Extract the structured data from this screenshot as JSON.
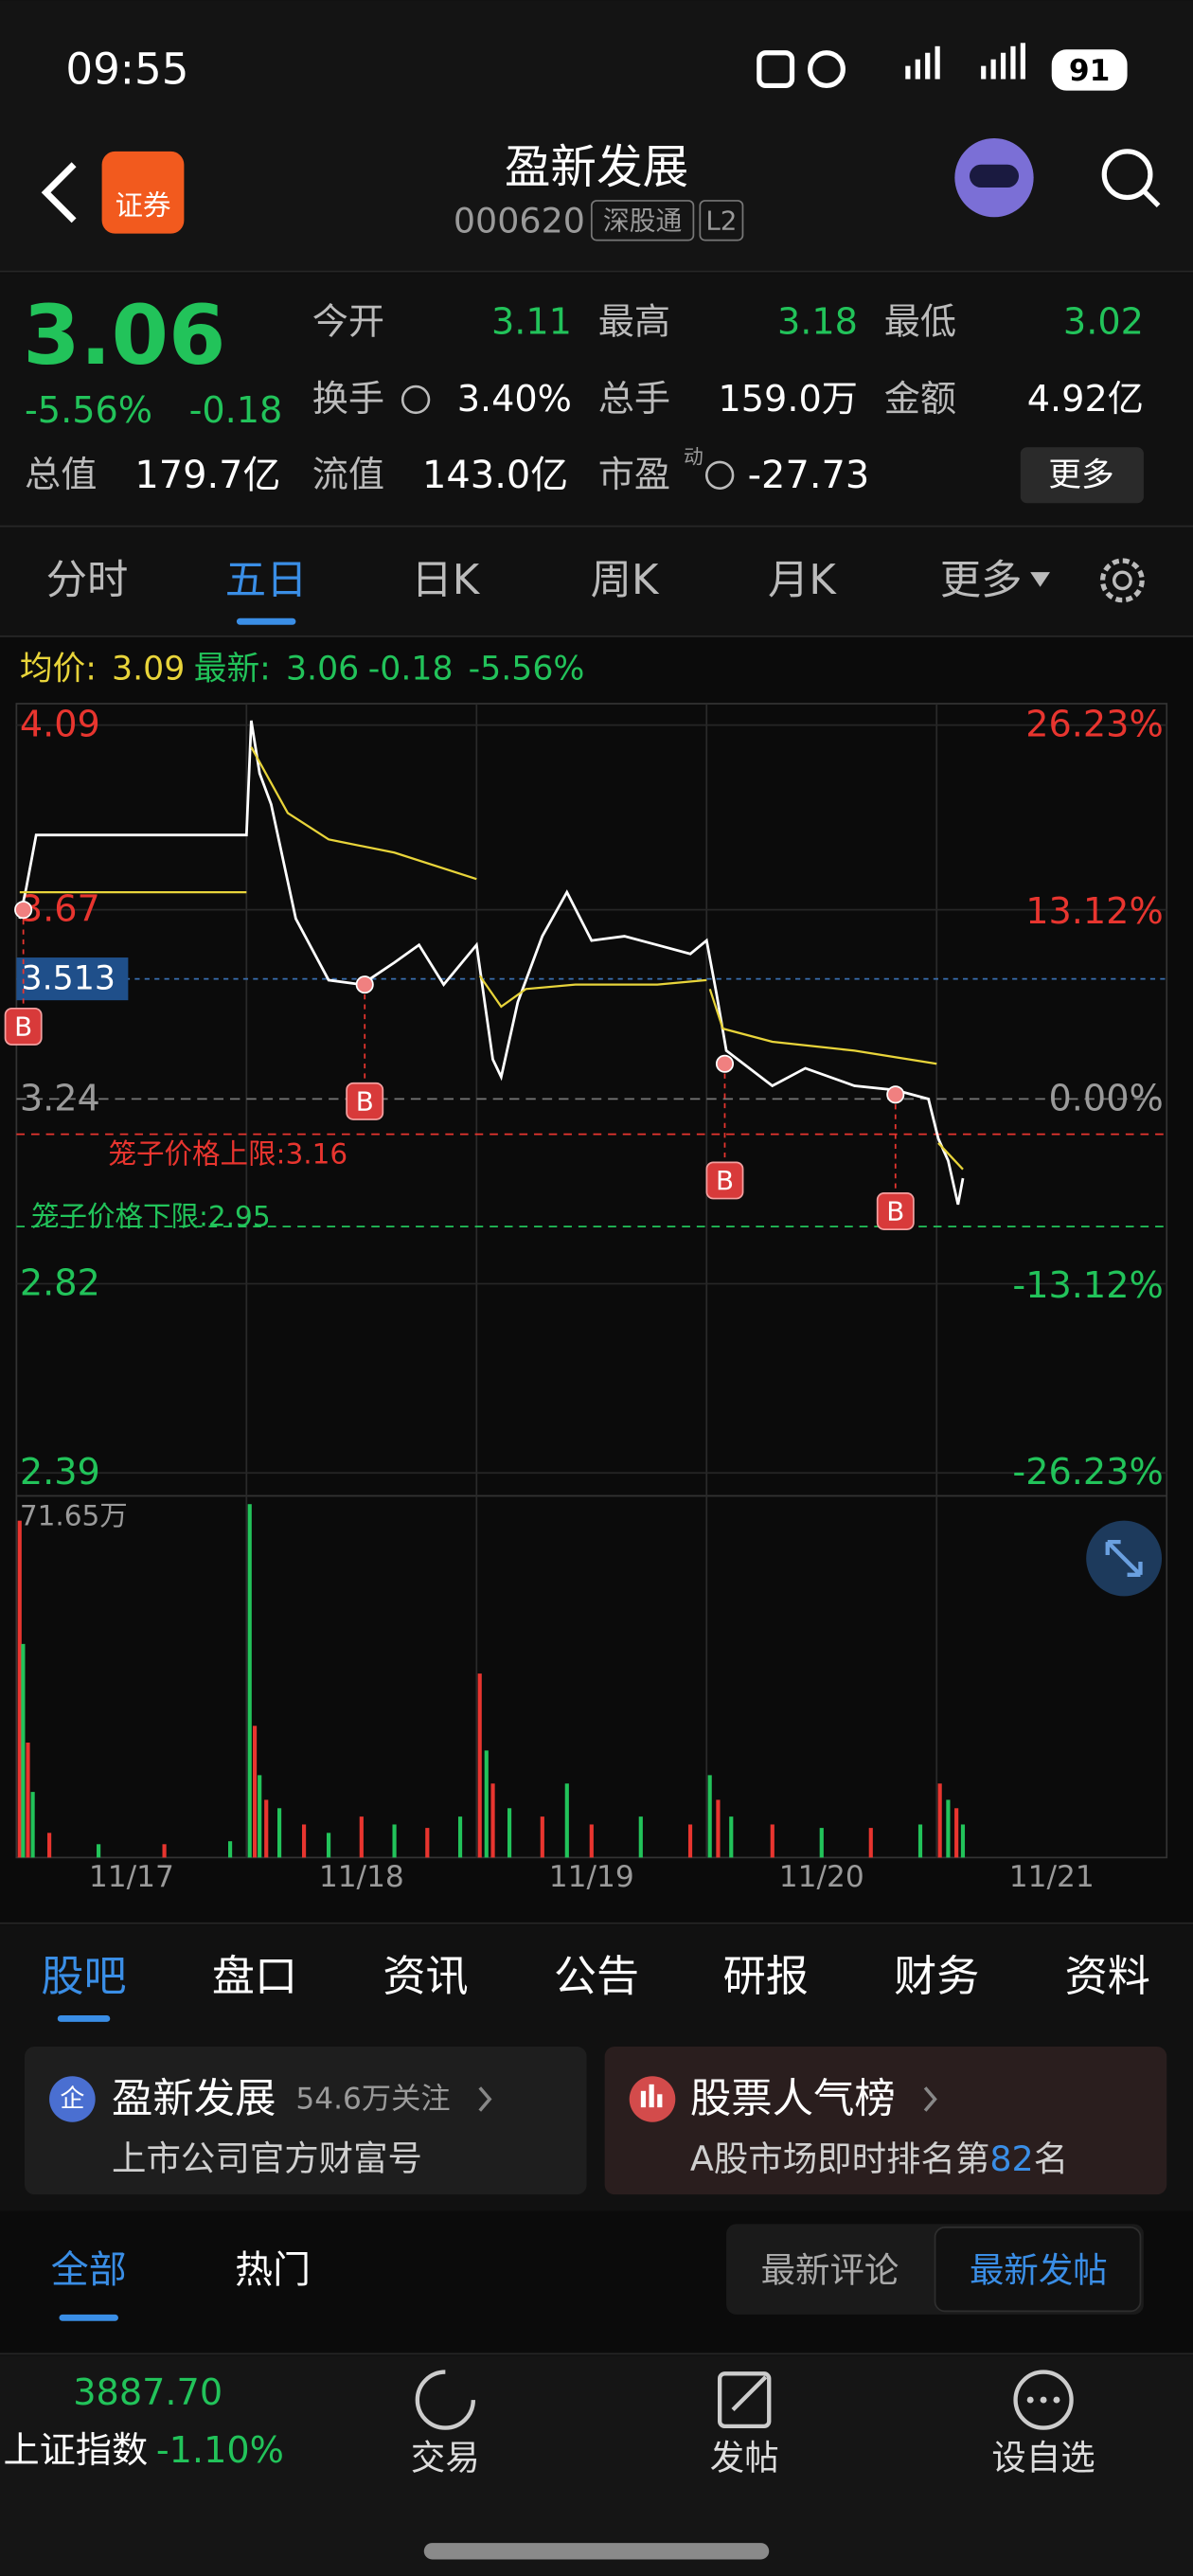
{
  "status": {
    "time": "09:55",
    "battery": "91"
  },
  "header": {
    "logo": "证券",
    "title": "盈新发展",
    "code": "000620",
    "tags": [
      "深股通",
      "L2"
    ]
  },
  "quote": {
    "price": "3.06",
    "change_pct": "-5.56%",
    "change": "-0.18",
    "stats": [
      {
        "label": "今开",
        "value": "3.11"
      },
      {
        "label": "最高",
        "value": "3.18"
      },
      {
        "label": "最低",
        "value": "3.02"
      },
      {
        "label": "换手",
        "value": "3.40%"
      },
      {
        "label": "总手",
        "value": "159.0万"
      },
      {
        "label": "金额",
        "value": "4.92亿"
      },
      {
        "label": "总值",
        "value": "179.7亿"
      },
      {
        "label": "流值",
        "value": "143.0亿"
      },
      {
        "label": "市盈",
        "value": "-27.73"
      }
    ],
    "pe_note": "动",
    "more": "更多"
  },
  "chart_tabs": {
    "items": [
      "分时",
      "五日",
      "日K",
      "周K",
      "月K",
      "更多"
    ],
    "active": 1
  },
  "legend": {
    "avg_label": "均价:",
    "avg": "3.09",
    "last_label": "最新:",
    "last": "3.06",
    "change": "-0.18",
    "change_pct": "-5.56%"
  },
  "chart": {
    "type": "line",
    "xlim": [
      0,
      5
    ],
    "categories": [
      "11/17",
      "11/18",
      "11/19",
      "11/20",
      "11/21"
    ],
    "ylim": [
      2.39,
      4.09
    ],
    "yticks": [
      4.09,
      3.67,
      3.24,
      2.82,
      2.39
    ],
    "y2lim": [
      -26.23,
      26.23
    ],
    "y2ticks": [
      {
        "value": 26.23,
        "label": "26.23%"
      },
      {
        "value": 13.12,
        "label": "13.12%"
      },
      {
        "value": 0,
        "label": "0.00%"
      },
      {
        "value": -13.12,
        "label": "-13.12%"
      },
      {
        "value": -26.23,
        "label": "-26.23%"
      }
    ],
    "series": [
      {
        "name": "最新",
        "color": "#ffffff",
        "x": [
          0.014,
          0.043,
          0.086,
          1.0,
          1.021,
          1.057,
          1.107,
          1.214,
          1.357,
          1.5,
          1.643,
          1.75,
          1.857,
          2.0,
          2.071,
          2.107,
          2.179,
          2.286,
          2.393,
          2.5,
          2.643,
          2.786,
          2.929,
          3.0,
          3.043,
          3.086,
          3.286,
          3.429,
          3.643,
          3.821,
          3.964,
          4.007,
          4.05,
          4.093,
          4.114
        ],
        "values": [
          3.65,
          3.72,
          3.84,
          3.84,
          4.1,
          3.98,
          3.91,
          3.65,
          3.51,
          3.5,
          3.55,
          3.59,
          3.5,
          3.59,
          3.33,
          3.29,
          3.46,
          3.61,
          3.71,
          3.6,
          3.61,
          3.59,
          3.57,
          3.6,
          3.48,
          3.35,
          3.27,
          3.31,
          3.27,
          3.26,
          3.24,
          3.15,
          3.1,
          3.0,
          3.06
        ]
      },
      {
        "name": "均价",
        "color": "#e8d43a",
        "x": [
          0.014,
          1.0,
          1.01,
          1.021,
          1.179,
          1.357,
          1.643,
          2.0,
          2.01,
          2.014,
          2.107,
          2.214,
          2.429,
          2.786,
          3.0,
          3.01,
          3.014,
          3.071,
          3.286,
          3.643,
          4.0,
          4.004,
          4.007,
          4.114
        ],
        "values": [
          3.71,
          3.71,
          null,
          4.04,
          3.89,
          3.83,
          3.8,
          3.74,
          null,
          3.52,
          3.45,
          3.49,
          3.5,
          3.5,
          3.51,
          null,
          3.49,
          3.4,
          3.37,
          3.35,
          3.32,
          null,
          3.14,
          3.08
        ]
      }
    ],
    "ref_line": {
      "value": 3.513,
      "label": "3.513"
    },
    "cage": [
      {
        "label": "笼子价格上限:3.16",
        "value": 3.16,
        "color": "#e8352f"
      },
      {
        "label": "笼子价格下限:2.95",
        "value": 2.95,
        "color": "#22c35a"
      }
    ],
    "trade_marks": [
      {
        "x": 0.03,
        "price": 3.67,
        "label": "B"
      },
      {
        "x": 1.514,
        "price": 3.5,
        "label": "B"
      },
      {
        "x": 3.079,
        "price": 3.32,
        "label": "B"
      },
      {
        "x": 3.821,
        "price": 3.25,
        "label": "B"
      }
    ],
    "volume": {
      "ylim": [
        0,
        71.65
      ],
      "ytick": {
        "value": 71.65,
        "label": "71.65万"
      },
      "x": [
        0.014,
        0.029,
        0.05,
        0.071,
        0.143,
        0.357,
        0.643,
        0.929,
        1.014,
        1.036,
        1.057,
        1.086,
        1.143,
        1.25,
        1.357,
        1.5,
        1.643,
        1.786,
        1.929,
        2.014,
        2.043,
        2.071,
        2.143,
        2.286,
        2.393,
        2.5,
        2.714,
        2.929,
        3.014,
        3.05,
        3.107,
        3.286,
        3.5,
        3.714,
        3.929,
        4.014,
        4.05,
        4.086,
        4.114
      ],
      "values": [
        68.3,
        43.3,
        23.3,
        13.3,
        5.0,
        2.7,
        2.7,
        3.3,
        71.65,
        26.7,
        16.7,
        11.7,
        10.0,
        6.7,
        5.0,
        8.3,
        6.7,
        6.0,
        8.3,
        37.3,
        21.7,
        15.0,
        10.0,
        8.3,
        15.0,
        6.7,
        8.3,
        6.7,
        16.7,
        11.7,
        8.3,
        6.7,
        6.0,
        6.0,
        6.7,
        15.0,
        11.7,
        10.0,
        6.7
      ],
      "colors": [
        "#e8352f",
        "#22c35a",
        "#e8352f",
        "#22c35a",
        "#e8352f",
        "#22c35a",
        "#e8352f",
        "#22c35a",
        "#22c35a",
        "#e8352f",
        "#22c35a",
        "#e8352f",
        "#22c35a",
        "#e8352f",
        "#22c35a",
        "#e8352f",
        "#22c35a",
        "#e8352f",
        "#22c35a",
        "#e8352f",
        "#22c35a",
        "#e8352f",
        "#22c35a",
        "#e8352f",
        "#22c35a",
        "#e8352f",
        "#22c35a",
        "#e8352f",
        "#22c35a",
        "#e8352f",
        "#22c35a",
        "#e8352f",
        "#22c35a",
        "#e8352f",
        "#22c35a",
        "#e8352f",
        "#22c35a",
        "#e8352f",
        "#22c35a"
      ]
    }
  },
  "sub_tabs": {
    "items": [
      "股吧",
      "盘口",
      "资讯",
      "公告",
      "研报",
      "财务",
      "资料"
    ],
    "active": 0
  },
  "cards": [
    {
      "icon": "企",
      "title": "盈新发展",
      "followers": "54.6万关注",
      "subtitle": "上市公司官方财富号"
    },
    {
      "title": "股票人气榜",
      "text": "A股市场即时排名第",
      "rank": "82",
      "suffix": "名"
    }
  ],
  "filters": {
    "items": [
      "全部",
      "热门"
    ],
    "active": 0,
    "sort": [
      "最新评论",
      "最新发帖"
    ],
    "sort_active": 1
  },
  "bottom_bar": {
    "index_value": "3887.70",
    "index_name": "上证指数",
    "index_change": "-1.10%",
    "nav": [
      "交易",
      "发帖",
      "设自选"
    ]
  }
}
